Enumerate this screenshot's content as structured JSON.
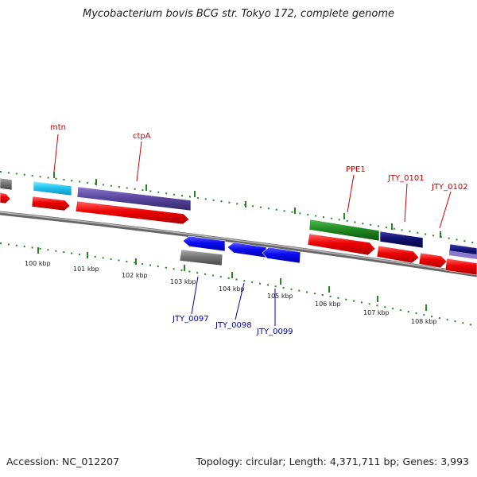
{
  "title": "Mycobacterium bovis BCG str. Tokyo 172, complete genome",
  "footer": {
    "accession": "Accession: NC_012207",
    "summary": "Topology: circular; Length: 4,371,711 bp; Genes: 3,993"
  },
  "colors": {
    "forward_label": "#cc0000",
    "reverse_label": "#0000aa",
    "backbone": "#888888",
    "tick": "#228822"
  },
  "scale_labels": [
    "100 kbp",
    "101 kbp",
    "102 kbp",
    "103 kbp",
    "104 kbp",
    "105 kbp",
    "106 kbp",
    "107 kbp",
    "108 kbp"
  ],
  "forward_labels": [
    "mtn",
    "ctpA",
    "PPE1",
    "JTY_0101",
    "JTY_0102"
  ],
  "reverse_labels": [
    "JTY_0097",
    "JTY_0098",
    "JTY_0099"
  ]
}
